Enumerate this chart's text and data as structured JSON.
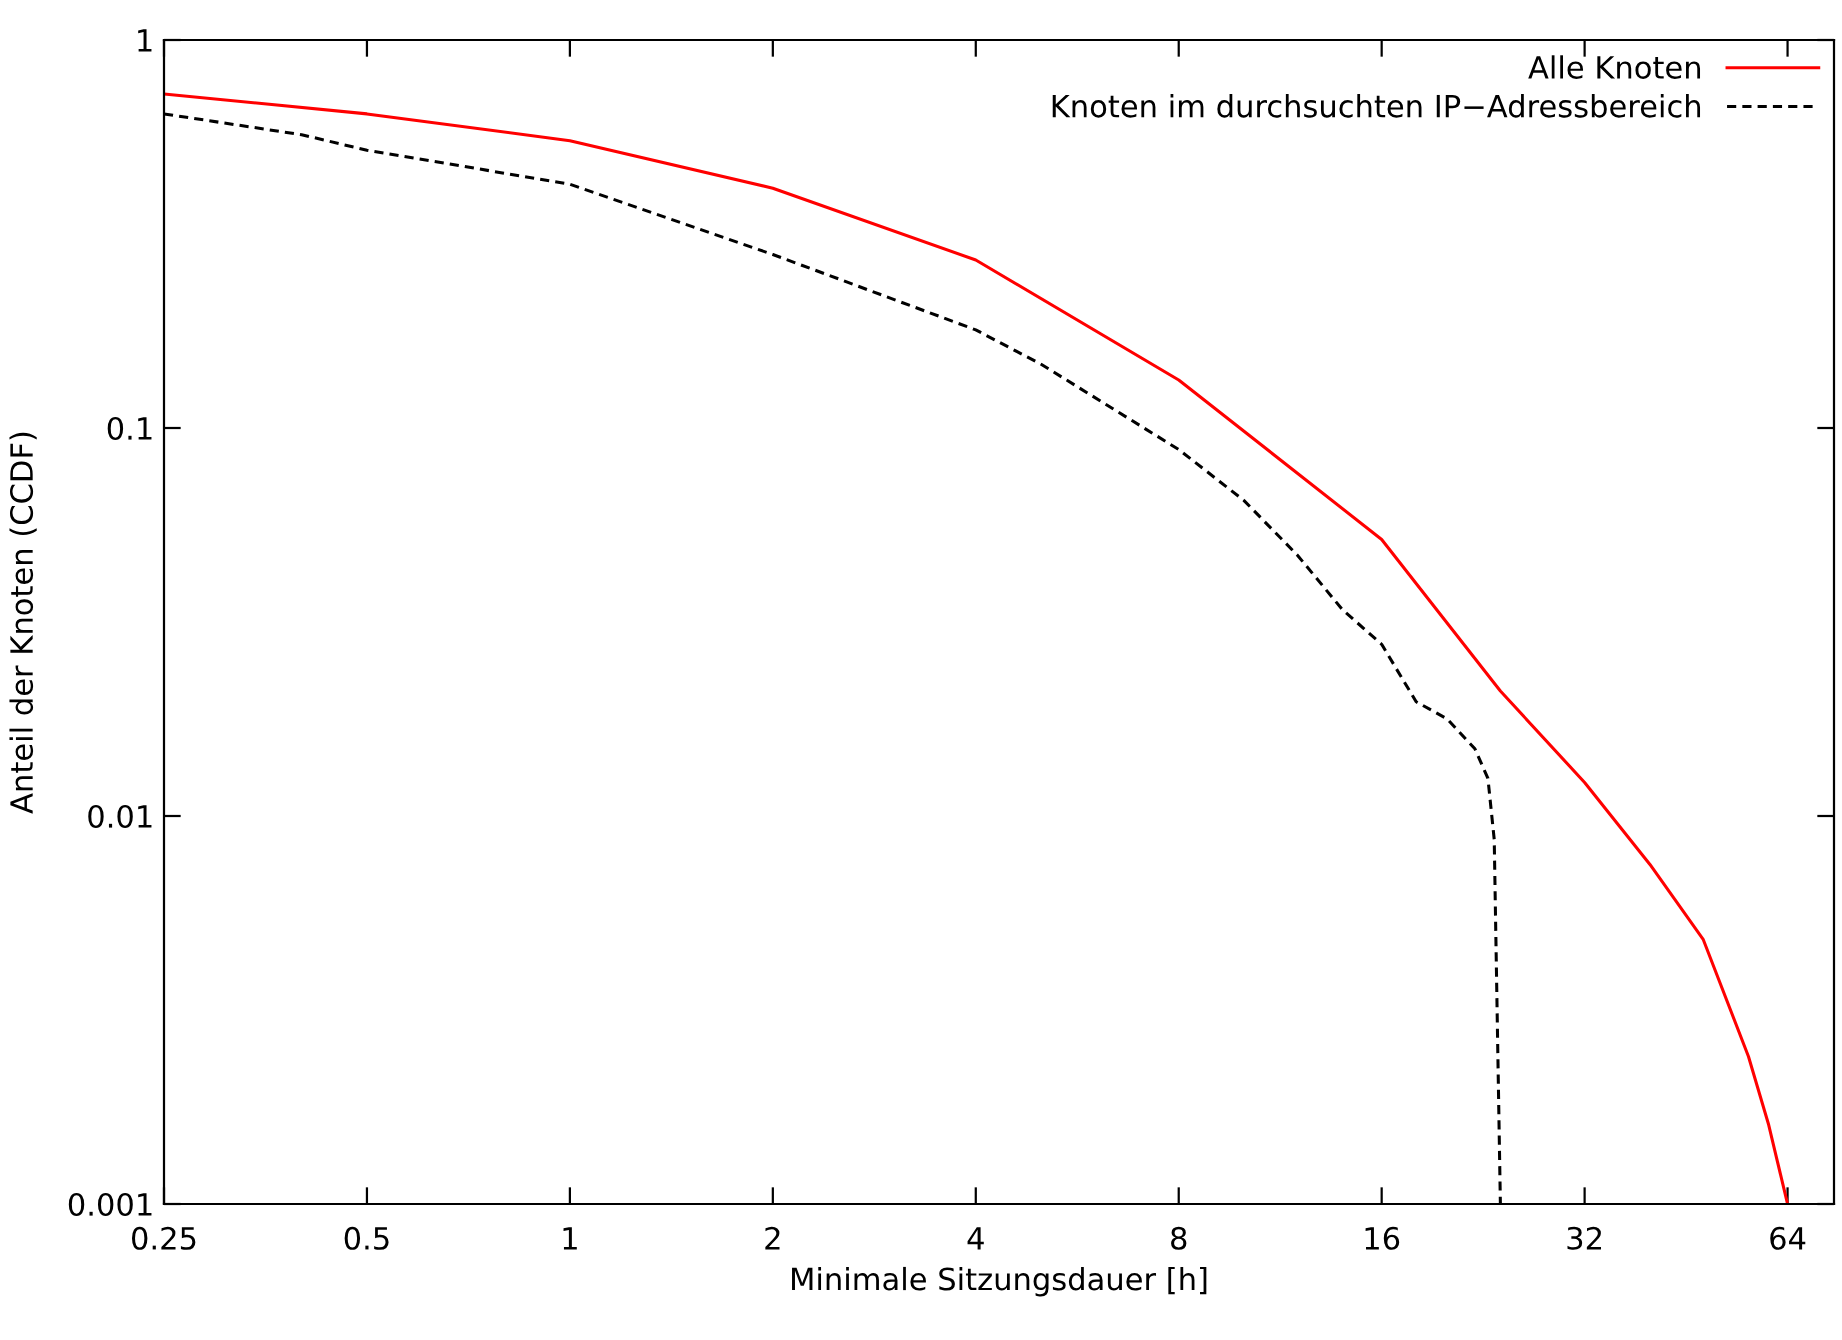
{
  "chart_data": {
    "type": "line",
    "xlabel": "Minimale Sitzungsdauer [h]",
    "ylabel": "Anteil der Knoten (CCDF)",
    "log": "xy",
    "xlim": [
      0.25,
      75
    ],
    "ylim": [
      0.001,
      1
    ],
    "xticks": [
      0.25,
      0.5,
      1,
      2,
      4,
      8,
      16,
      32,
      64
    ],
    "yticks": [
      0.001,
      0.01,
      0.1,
      1
    ],
    "grid": false,
    "legend": "top right",
    "marker": "none",
    "series": [
      {
        "name": "Alle Knoten",
        "color": "#ff0000",
        "line_style": "solid",
        "x": [
          0.25,
          0.5,
          1,
          2,
          4,
          8,
          16,
          24,
          32,
          40,
          48,
          56,
          60,
          64
        ],
        "values": [
          0.726,
          0.645,
          0.55,
          0.415,
          0.271,
          0.133,
          0.0516,
          0.021,
          0.0122,
          0.0075,
          0.0048,
          0.0024,
          0.0016,
          0.001
        ]
      },
      {
        "name": "Knoten im durchsuchten IP−Adressbereich",
        "color": "#000000",
        "line_style": "dashed",
        "x": [
          0.25,
          0.4,
          0.5,
          1,
          2,
          4,
          5,
          8,
          10,
          12,
          14,
          16,
          18,
          20,
          22,
          23,
          23.5,
          24
        ],
        "values": [
          0.645,
          0.57,
          0.52,
          0.425,
          0.28,
          0.179,
          0.146,
          0.088,
          0.065,
          0.047,
          0.034,
          0.0277,
          0.0197,
          0.0178,
          0.0149,
          0.0125,
          0.0087,
          0.001
        ]
      }
    ]
  }
}
